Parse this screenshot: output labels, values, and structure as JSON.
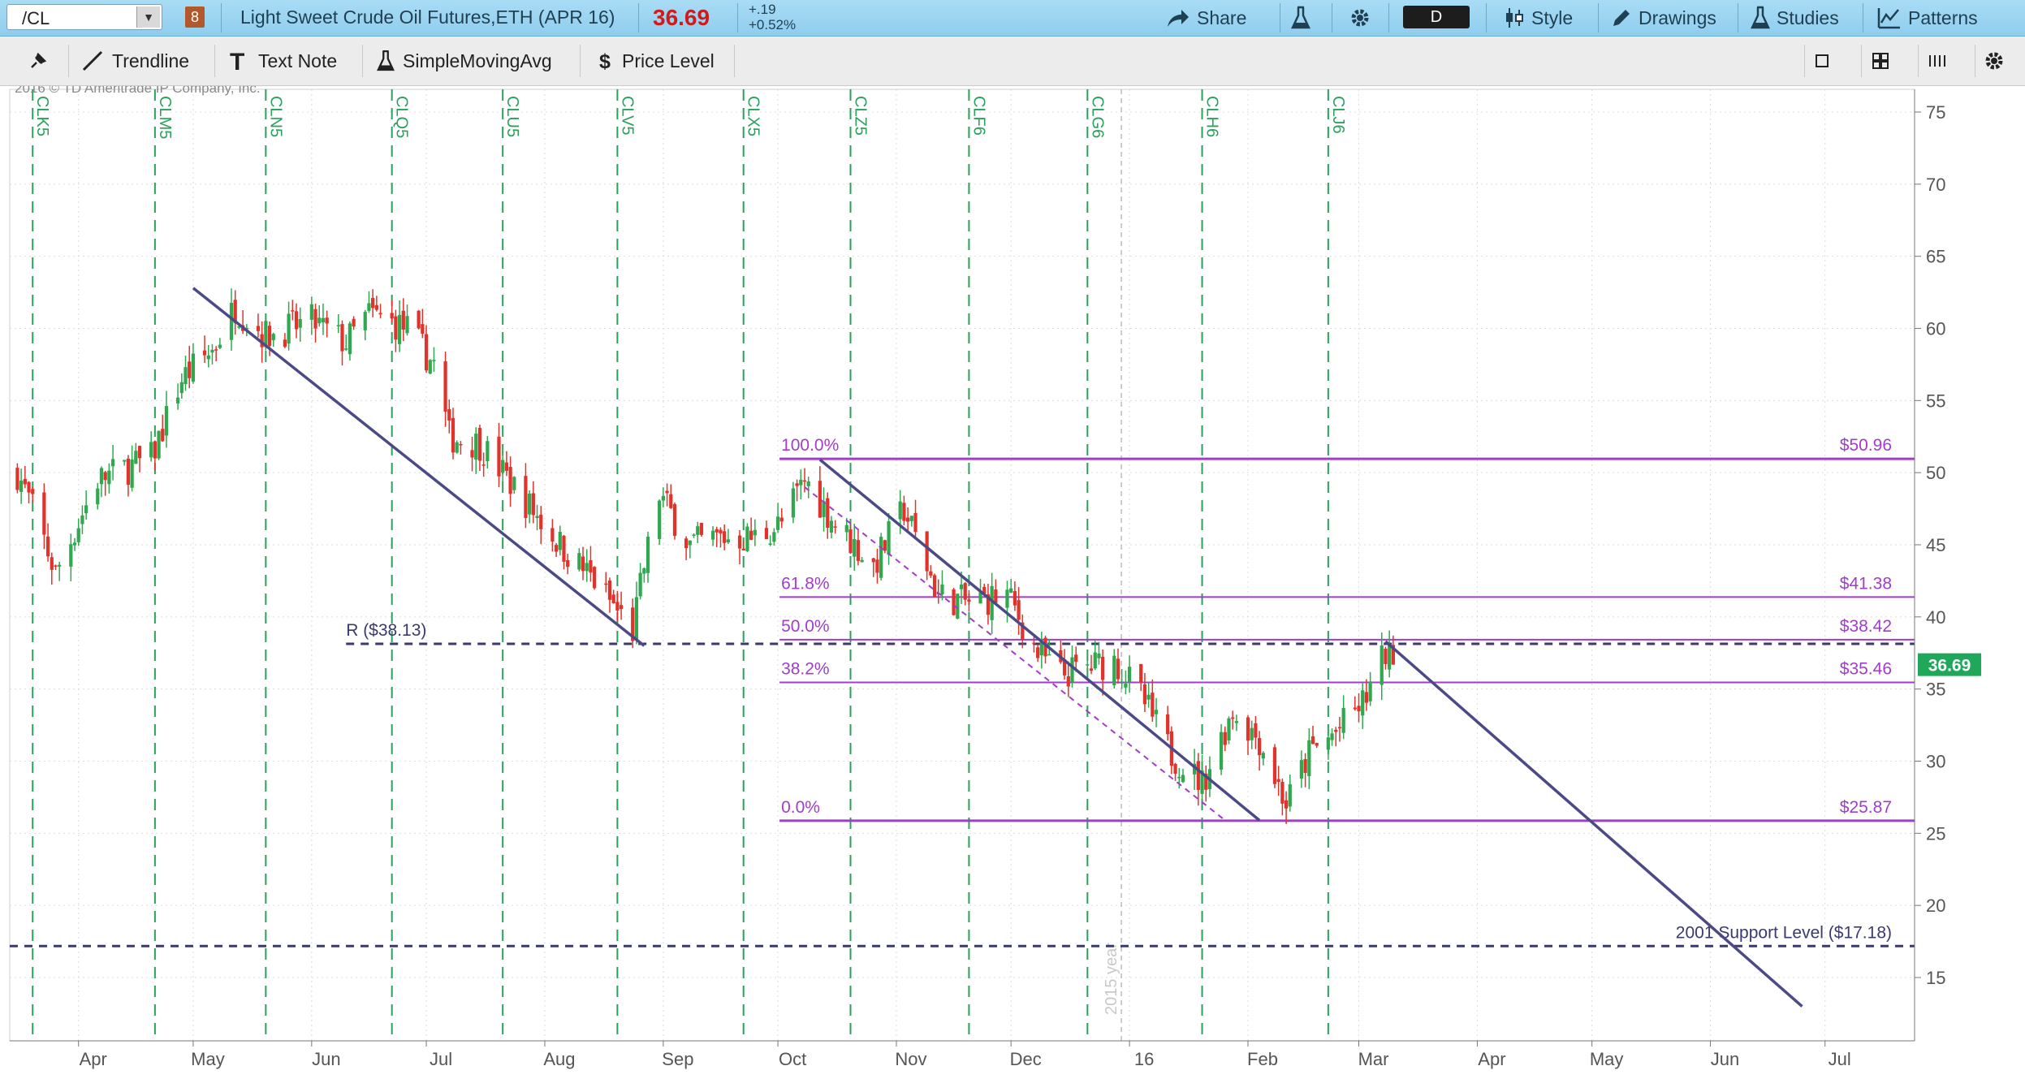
{
  "header": {
    "symbol": "/CL",
    "link_number": "8",
    "description": "Light Sweet Crude Oil Futures,ETH (APR 16)",
    "last_price": "36.69",
    "change_abs": "+.19",
    "change_pct": "+0.52%",
    "buttons": {
      "share": "Share",
      "period": "D",
      "style": "Style",
      "drawings": "Drawings",
      "studies": "Studies",
      "patterns": "Patterns"
    }
  },
  "drawing_toolbar": {
    "trendline": "Trendline",
    "text_note": "Text Note",
    "simple_moving_avg": "SimpleMovingAvg",
    "price_level": "Price Level"
  },
  "colors": {
    "header_bg": "#9ed6f2",
    "up": "#2fa84f",
    "down": "#e0332b",
    "volume": "#c8f4f8",
    "fib": "#a23ccc",
    "trendline": "#4b4a86",
    "contract_marker": "#2aa05a"
  },
  "chart_data": {
    "type": "candlestick",
    "copyright": "2016 © TD Ameritrade IP Company, Inc.",
    "ylim": [
      11,
      77
    ],
    "y_ticks": [
      15,
      20,
      25,
      30,
      35,
      40,
      45,
      50,
      55,
      60,
      65,
      70,
      75
    ],
    "x_tick_labels": [
      "Apr",
      "May",
      "Jun",
      "Jul",
      "Aug",
      "Sep",
      "Oct",
      "Nov",
      "Dec",
      "16",
      "Feb",
      "Mar",
      "Apr",
      "May",
      "Jun",
      "Jul"
    ],
    "contract_markers": [
      "CLK5",
      "CLM5",
      "CLN5",
      "CLQ5",
      "CLU5",
      "CLV5",
      "CLX5",
      "CLZ5",
      "CLF6",
      "CLG6",
      "CLH6",
      "CLJ6"
    ],
    "year_marker": "2015 year",
    "price_anchors": [
      {
        "date": "2015-03-16",
        "close": 50.0
      },
      {
        "date": "2015-03-20",
        "close": 47.5
      },
      {
        "date": "2015-03-26",
        "close": 43.0
      },
      {
        "date": "2015-04-06",
        "close": 49.5
      },
      {
        "date": "2015-04-20",
        "close": 51.0
      },
      {
        "date": "2015-04-28",
        "close": 56.5
      },
      {
        "date": "2015-05-06",
        "close": 58.5
      },
      {
        "date": "2015-05-12",
        "close": 61.5
      },
      {
        "date": "2015-05-20",
        "close": 59.5
      },
      {
        "date": "2015-06-01",
        "close": 60.5
      },
      {
        "date": "2015-06-10",
        "close": 59.0
      },
      {
        "date": "2015-06-16",
        "close": 61.0
      },
      {
        "date": "2015-06-26",
        "close": 60.0
      },
      {
        "date": "2015-07-03",
        "close": 57.5
      },
      {
        "date": "2015-07-07",
        "close": 52.5
      },
      {
        "date": "2015-07-15",
        "close": 52.0
      },
      {
        "date": "2015-07-27",
        "close": 48.0
      },
      {
        "date": "2015-08-05",
        "close": 45.0
      },
      {
        "date": "2015-08-14",
        "close": 42.5
      },
      {
        "date": "2015-08-24",
        "close": 39.0
      },
      {
        "date": "2015-08-27",
        "close": 43.5
      },
      {
        "date": "2015-08-31",
        "close": 48.5
      },
      {
        "date": "2015-09-08",
        "close": 45.0
      },
      {
        "date": "2015-09-16",
        "close": 45.5
      },
      {
        "date": "2015-09-25",
        "close": 45.5
      },
      {
        "date": "2015-10-02",
        "close": 46.5
      },
      {
        "date": "2015-10-08",
        "close": 49.5
      },
      {
        "date": "2015-10-16",
        "close": 46.5
      },
      {
        "date": "2015-10-26",
        "close": 43.5
      },
      {
        "date": "2015-11-03",
        "close": 47.5
      },
      {
        "date": "2015-11-12",
        "close": 41.5
      },
      {
        "date": "2015-11-20",
        "close": 41.0
      },
      {
        "date": "2015-11-30",
        "close": 41.5
      },
      {
        "date": "2015-12-08",
        "close": 37.5
      },
      {
        "date": "2015-12-14",
        "close": 36.0
      },
      {
        "date": "2015-12-21",
        "close": 36.5
      },
      {
        "date": "2015-12-28",
        "close": 37.0
      },
      {
        "date": "2016-01-04",
        "close": 34.5
      },
      {
        "date": "2016-01-12",
        "close": 30.5
      },
      {
        "date": "2016-01-20",
        "close": 28.5
      },
      {
        "date": "2016-01-28",
        "close": 33.5
      },
      {
        "date": "2016-02-04",
        "close": 31.5
      },
      {
        "date": "2016-02-11",
        "close": 27.0
      },
      {
        "date": "2016-02-17",
        "close": 30.5
      },
      {
        "date": "2016-02-24",
        "close": 32.0
      },
      {
        "date": "2016-03-02",
        "close": 34.0
      },
      {
        "date": "2016-03-08",
        "close": 37.5
      },
      {
        "date": "2016-03-10",
        "close": 36.69
      }
    ],
    "fibonacci": [
      {
        "level": "100.0%",
        "price": 50.96,
        "label": "$50.96"
      },
      {
        "level": "61.8%",
        "price": 41.38,
        "label": "$41.38"
      },
      {
        "level": "50.0%",
        "price": 38.42,
        "label": "$38.42"
      },
      {
        "level": "38.2%",
        "price": 35.46,
        "label": "$35.46"
      },
      {
        "level": "0.0%",
        "price": 25.87,
        "label": "$25.87"
      }
    ],
    "resistance": {
      "label": "R ($38.13)",
      "price": 38.13
    },
    "support": {
      "label": "2001 Support Level ($17.18)",
      "price": 17.18
    },
    "trendlines": [
      {
        "start": [
          "2015-05-01",
          62.8
        ],
        "end": [
          "2015-08-27",
          38.0
        ]
      },
      {
        "start": [
          "2015-10-12",
          50.9
        ],
        "end": [
          "2016-02-04",
          25.9
        ]
      },
      {
        "start": [
          "2016-03-08",
          38.3
        ],
        "end": [
          "2016-06-25",
          13.0
        ]
      }
    ],
    "channel_line": {
      "start": [
        "2015-10-08",
        49.0
      ],
      "end": [
        "2016-01-26",
        25.9
      ]
    },
    "last_price_tag": "36.69"
  }
}
